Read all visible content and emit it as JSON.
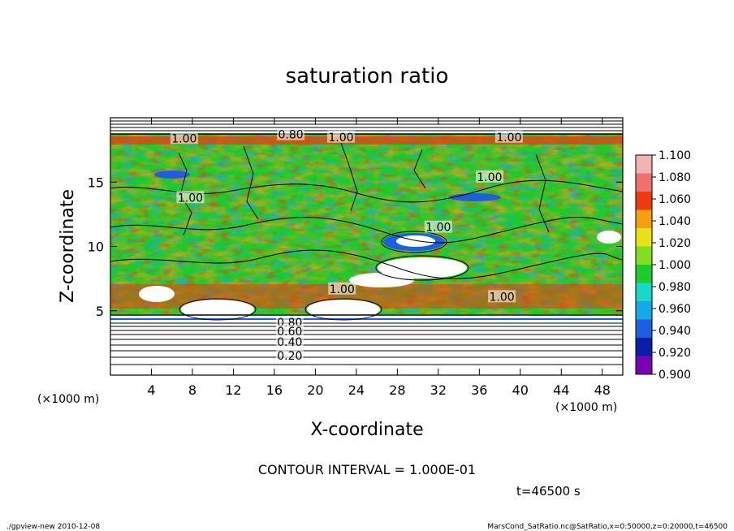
{
  "chart_data": {
    "type": "heatmap",
    "title": "saturation ratio",
    "xlabel": "X-coordinate",
    "ylabel": "Z-coordinate",
    "x_unit": "(×1000 m)",
    "y_unit": "(×1000 m)",
    "xlim": [
      0,
      50
    ],
    "ylim": [
      0,
      20
    ],
    "xticks": [
      "4",
      "8",
      "12",
      "16",
      "20",
      "24",
      "28",
      "32",
      "36",
      "40",
      "44",
      "48"
    ],
    "yticks": [
      "5",
      "10",
      "15"
    ],
    "grid": false,
    "colorbar": {
      "placement": "right",
      "levels": [
        "0.900",
        "0.920",
        "0.940",
        "0.960",
        "0.980",
        "1.000",
        "1.020",
        "1.040",
        "1.060",
        "1.080",
        "1.100"
      ],
      "colors": [
        "#7a00b8",
        "#0a1fa8",
        "#1d5fe0",
        "#16a9e8",
        "#18d8c8",
        "#1ccc2a",
        "#80e020",
        "#e8e018",
        "#f4a010",
        "#ee3a10",
        "#f07070",
        "#f0b4b4"
      ]
    },
    "contour_labels": [
      {
        "text": "1.00",
        "x": 7.2,
        "z": 18.4
      },
      {
        "text": "0.80",
        "x": 17.6,
        "z": 18.7
      },
      {
        "text": "1.00",
        "x": 22.5,
        "z": 18.5
      },
      {
        "text": "1.00",
        "x": 38.9,
        "z": 18.5
      },
      {
        "text": "1.00",
        "x": 37.0,
        "z": 15.4
      },
      {
        "text": "1.00",
        "x": 7.8,
        "z": 13.8
      },
      {
        "text": "1.00",
        "x": 32.0,
        "z": 11.5
      },
      {
        "text": "1.00",
        "x": 22.6,
        "z": 6.7
      },
      {
        "text": "1.00",
        "x": 38.2,
        "z": 6.1
      },
      {
        "text": "0.80",
        "x": 17.5,
        "z": 4.1
      },
      {
        "text": "0.60",
        "x": 17.5,
        "z": 3.4
      },
      {
        "text": "0.40",
        "x": 17.5,
        "z": 2.6
      },
      {
        "text": "0.20",
        "x": 17.5,
        "z": 1.5
      }
    ],
    "contour_interval": "CONTOUR INTERVAL = 1.000E-01",
    "time": "t=46500 s"
  },
  "footer": {
    "left": "./gpview-new   2010-12-08",
    "right": "MarsCond_SatRatio.nc@SatRatio,x=0:50000,z=0:20000,t=46500"
  }
}
